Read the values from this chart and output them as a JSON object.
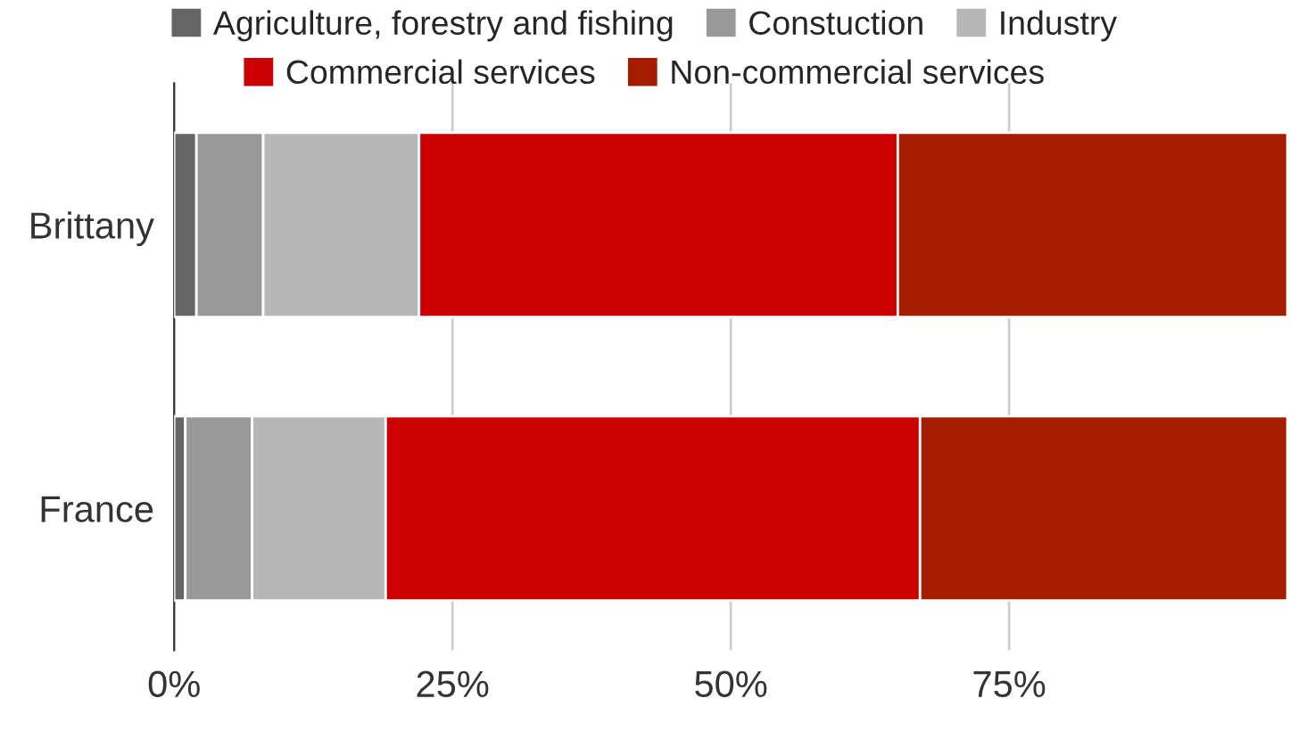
{
  "chart_data": {
    "type": "bar",
    "orientation": "horizontal",
    "stacked": true,
    "categories": [
      "Brittany",
      "France"
    ],
    "series": [
      {
        "name": "Agriculture, forestry and fishing",
        "color": "#666666",
        "values": [
          2,
          1
        ]
      },
      {
        "name": "Constuction",
        "color": "#999999",
        "values": [
          6,
          6
        ]
      },
      {
        "name": "Industry",
        "color": "#b7b7b7",
        "values": [
          14,
          12
        ]
      },
      {
        "name": "Commercial services",
        "color": "#cc0000",
        "values": [
          43,
          48
        ]
      },
      {
        "name": "Non-commercial services",
        "color": "#a61c00",
        "values": [
          35,
          33
        ]
      }
    ],
    "xlim": [
      0,
      100
    ],
    "xticks": [
      {
        "value": 0,
        "label": "0%"
      },
      {
        "value": 25,
        "label": "25%"
      },
      {
        "value": 50,
        "label": "50%"
      },
      {
        "value": 75,
        "label": "75%"
      }
    ],
    "grid": "x",
    "legend": "top"
  }
}
